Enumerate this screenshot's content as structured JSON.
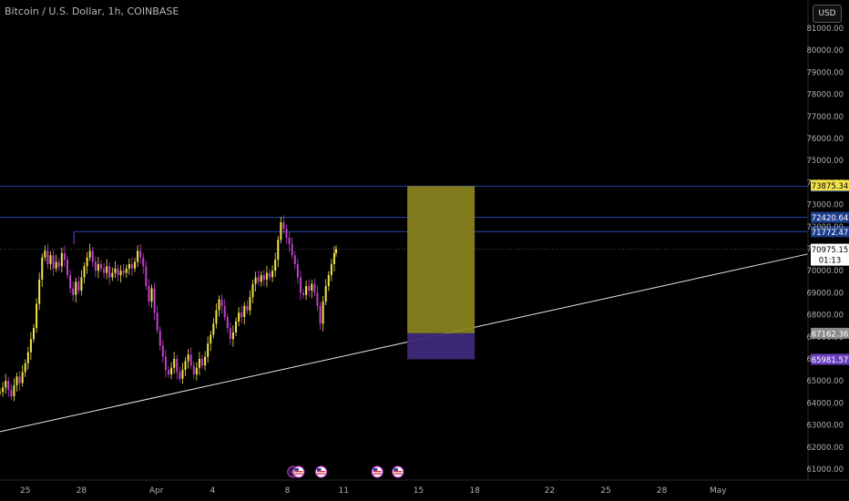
{
  "header": {
    "title": "Bitcoin / U.S. Dollar, 1h, COINBASE",
    "currency": "USD"
  },
  "chart_data": {
    "type": "candlestick",
    "y_ticks": [
      61000,
      62000,
      63000,
      64000,
      65000,
      66000,
      67000,
      68000,
      69000,
      70000,
      71000,
      72000,
      73000,
      74000,
      75000,
      76000,
      77000,
      78000,
      79000,
      80000,
      81000
    ],
    "y_range": [
      60500,
      81500
    ],
    "x_labels": [
      "25",
      "28",
      "Apr",
      "4",
      "8",
      "11",
      "15",
      "18",
      "22",
      "25",
      "28",
      "May"
    ],
    "x_label_days": [
      0,
      3,
      7,
      10,
      14,
      17,
      21,
      24,
      28,
      31,
      34,
      37
    ],
    "x_day_range": [
      -1.35,
      41.8
    ],
    "horizontal_lines": [
      {
        "price": 73835.34,
        "label": "73835.34",
        "color": "#1e3a8a"
      },
      {
        "price": 72420.64,
        "label": "72420.64",
        "color": "#1e3a8a"
      },
      {
        "price": 71772.47,
        "label": "71772.47",
        "color": "#1e3a8a"
      }
    ],
    "price_tags": [
      {
        "price": 73875.34,
        "label": "73875.34",
        "bg": "#f2e44a",
        "fg": "#000000"
      },
      {
        "price": 70975.15,
        "label": "70975.15",
        "sub": "01:13",
        "bg": "#ffffff",
        "fg": "#000000"
      },
      {
        "price": 67162.36,
        "label": "67162.36",
        "bg": "#8a8a8a",
        "fg": "#ffffff"
      },
      {
        "price": 65981.57,
        "label": "65981.57",
        "bg": "#6a3fc0",
        "fg": "#ffffff"
      }
    ],
    "hidden_tick_label": "72000.00",
    "position": {
      "day_start": 20.4,
      "day_end": 24.0,
      "entry": 67162.36,
      "target": 73835.34,
      "stop": 65981.57,
      "profit_color": "#8c8420",
      "loss_color": "#3d2a7a"
    },
    "trendline": {
      "p1": {
        "day": -1.35,
        "price": 62700
      },
      "p2": {
        "day": 41.8,
        "price": 70760
      },
      "color": "#e8e8e8"
    },
    "resistance_segment": {
      "day_start": 2.6,
      "day_end": 41.8,
      "price": 71772.47
    },
    "candles": [
      [
        -1.35,
        64500
      ],
      [
        -1.2,
        64700
      ],
      [
        -1.05,
        65000
      ],
      [
        -0.9,
        64600
      ],
      [
        -0.75,
        64300
      ],
      [
        -0.6,
        64800
      ],
      [
        -0.45,
        65200
      ],
      [
        -0.3,
        64900
      ],
      [
        -0.15,
        65400
      ],
      [
        0,
        65800
      ],
      [
        0.15,
        66300
      ],
      [
        0.3,
        66900
      ],
      [
        0.45,
        67400
      ],
      [
        0.6,
        68500
      ],
      [
        0.75,
        69600
      ],
      [
        0.9,
        70600
      ],
      [
        1.05,
        70900
      ],
      [
        1.2,
        70300
      ],
      [
        1.35,
        70700
      ],
      [
        1.5,
        70100
      ],
      [
        1.65,
        70400
      ],
      [
        1.8,
        70200
      ],
      [
        1.95,
        70800
      ],
      [
        2.1,
        70500
      ],
      [
        2.25,
        69800
      ],
      [
        2.4,
        69200
      ],
      [
        2.55,
        68900
      ],
      [
        2.7,
        69500
      ],
      [
        2.85,
        69100
      ],
      [
        3.0,
        69700
      ],
      [
        3.15,
        70200
      ],
      [
        3.3,
        70600
      ],
      [
        3.45,
        70900
      ],
      [
        3.6,
        70400
      ],
      [
        3.75,
        70000
      ],
      [
        3.9,
        70300
      ],
      [
        4.05,
        70100
      ],
      [
        4.2,
        69900
      ],
      [
        4.35,
        70200
      ],
      [
        4.5,
        69700
      ],
      [
        4.65,
        69900
      ],
      [
        4.8,
        70100
      ],
      [
        4.95,
        69800
      ],
      [
        5.1,
        70000
      ],
      [
        5.25,
        69900
      ],
      [
        5.4,
        70100
      ],
      [
        5.55,
        70300
      ],
      [
        5.7,
        70100
      ],
      [
        5.85,
        70400
      ],
      [
        6.0,
        70900
      ],
      [
        6.15,
        70600
      ],
      [
        6.3,
        70200
      ],
      [
        6.45,
        69300
      ],
      [
        6.6,
        68600
      ],
      [
        6.75,
        69200
      ],
      [
        6.9,
        68100
      ],
      [
        7.05,
        67300
      ],
      [
        7.2,
        66600
      ],
      [
        7.35,
        66100
      ],
      [
        7.5,
        65500
      ],
      [
        7.65,
        65300
      ],
      [
        7.8,
        65600
      ],
      [
        7.95,
        66000
      ],
      [
        8.1,
        65400
      ],
      [
        8.25,
        65100
      ],
      [
        8.4,
        65500
      ],
      [
        8.55,
        65900
      ],
      [
        8.7,
        66200
      ],
      [
        8.85,
        65700
      ],
      [
        9.0,
        65300
      ],
      [
        9.15,
        65600
      ],
      [
        9.3,
        66000
      ],
      [
        9.45,
        65700
      ],
      [
        9.6,
        66100
      ],
      [
        9.75,
        66700
      ],
      [
        9.9,
        67100
      ],
      [
        10.05,
        67600
      ],
      [
        10.2,
        68200
      ],
      [
        10.35,
        68700
      ],
      [
        10.5,
        68400
      ],
      [
        10.65,
        67900
      ],
      [
        10.8,
        67400
      ],
      [
        10.95,
        66900
      ],
      [
        11.1,
        67200
      ],
      [
        11.25,
        67700
      ],
      [
        11.4,
        68100
      ],
      [
        11.55,
        67900
      ],
      [
        11.7,
        68400
      ],
      [
        11.85,
        68200
      ],
      [
        12.0,
        68800
      ],
      [
        12.15,
        69400
      ],
      [
        12.3,
        69700
      ],
      [
        12.45,
        69500
      ],
      [
        12.6,
        69800
      ],
      [
        12.75,
        69600
      ],
      [
        12.9,
        69900
      ],
      [
        13.05,
        69700
      ],
      [
        13.2,
        70000
      ],
      [
        13.35,
        70500
      ],
      [
        13.5,
        71400
      ],
      [
        13.65,
        72200
      ],
      [
        13.8,
        71900
      ],
      [
        13.95,
        71500
      ],
      [
        14.1,
        71200
      ],
      [
        14.25,
        70700
      ],
      [
        14.4,
        70300
      ],
      [
        14.55,
        69700
      ],
      [
        14.7,
        69000
      ],
      [
        14.85,
        68900
      ],
      [
        15.0,
        69300
      ],
      [
        15.15,
        69100
      ],
      [
        15.3,
        69400
      ],
      [
        15.45,
        69000
      ],
      [
        15.6,
        68400
      ],
      [
        15.75,
        67600
      ],
      [
        15.9,
        68600
      ],
      [
        16.05,
        69300
      ],
      [
        16.2,
        69800
      ],
      [
        16.35,
        70300
      ],
      [
        16.5,
        70800
      ],
      [
        16.6,
        70975
      ]
    ],
    "event_icons": [
      {
        "day": 14.3,
        "type": "flash"
      },
      {
        "day": 14.6,
        "type": "us-flag"
      },
      {
        "day": 15.8,
        "type": "us-flag"
      },
      {
        "day": 18.8,
        "type": "us-flag"
      },
      {
        "day": 19.9,
        "type": "us-flag"
      }
    ]
  }
}
